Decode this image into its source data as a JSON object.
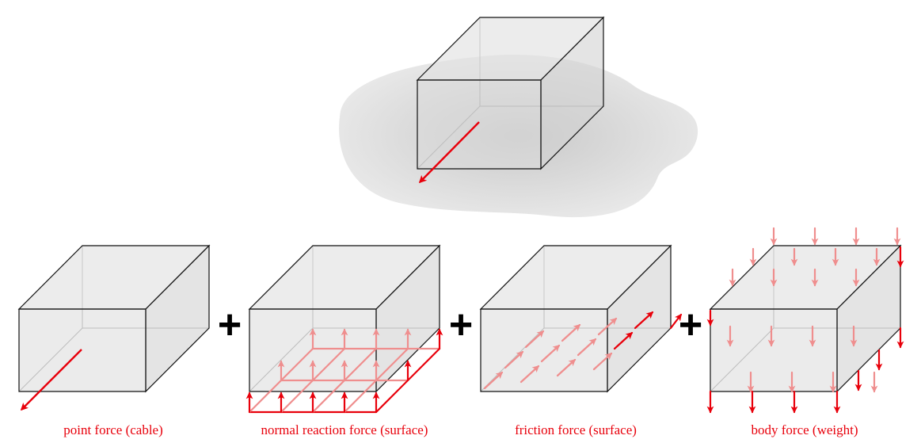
{
  "colors": {
    "force": "#e8000b",
    "force_faded": "#ef8e8e",
    "box_fill": "#c8c8c8",
    "box_edge": "#111111",
    "hidden_edge": "#9a9a9a",
    "shadow": "#d8d8d8"
  },
  "captions": {
    "point": "point force (cable)",
    "normal": "normal reaction force (surface)",
    "friction": "friction force (surface)",
    "body": "body force (weight)"
  },
  "operators": {
    "plus_1": "+",
    "plus_2": "+",
    "plus_3": "+"
  }
}
